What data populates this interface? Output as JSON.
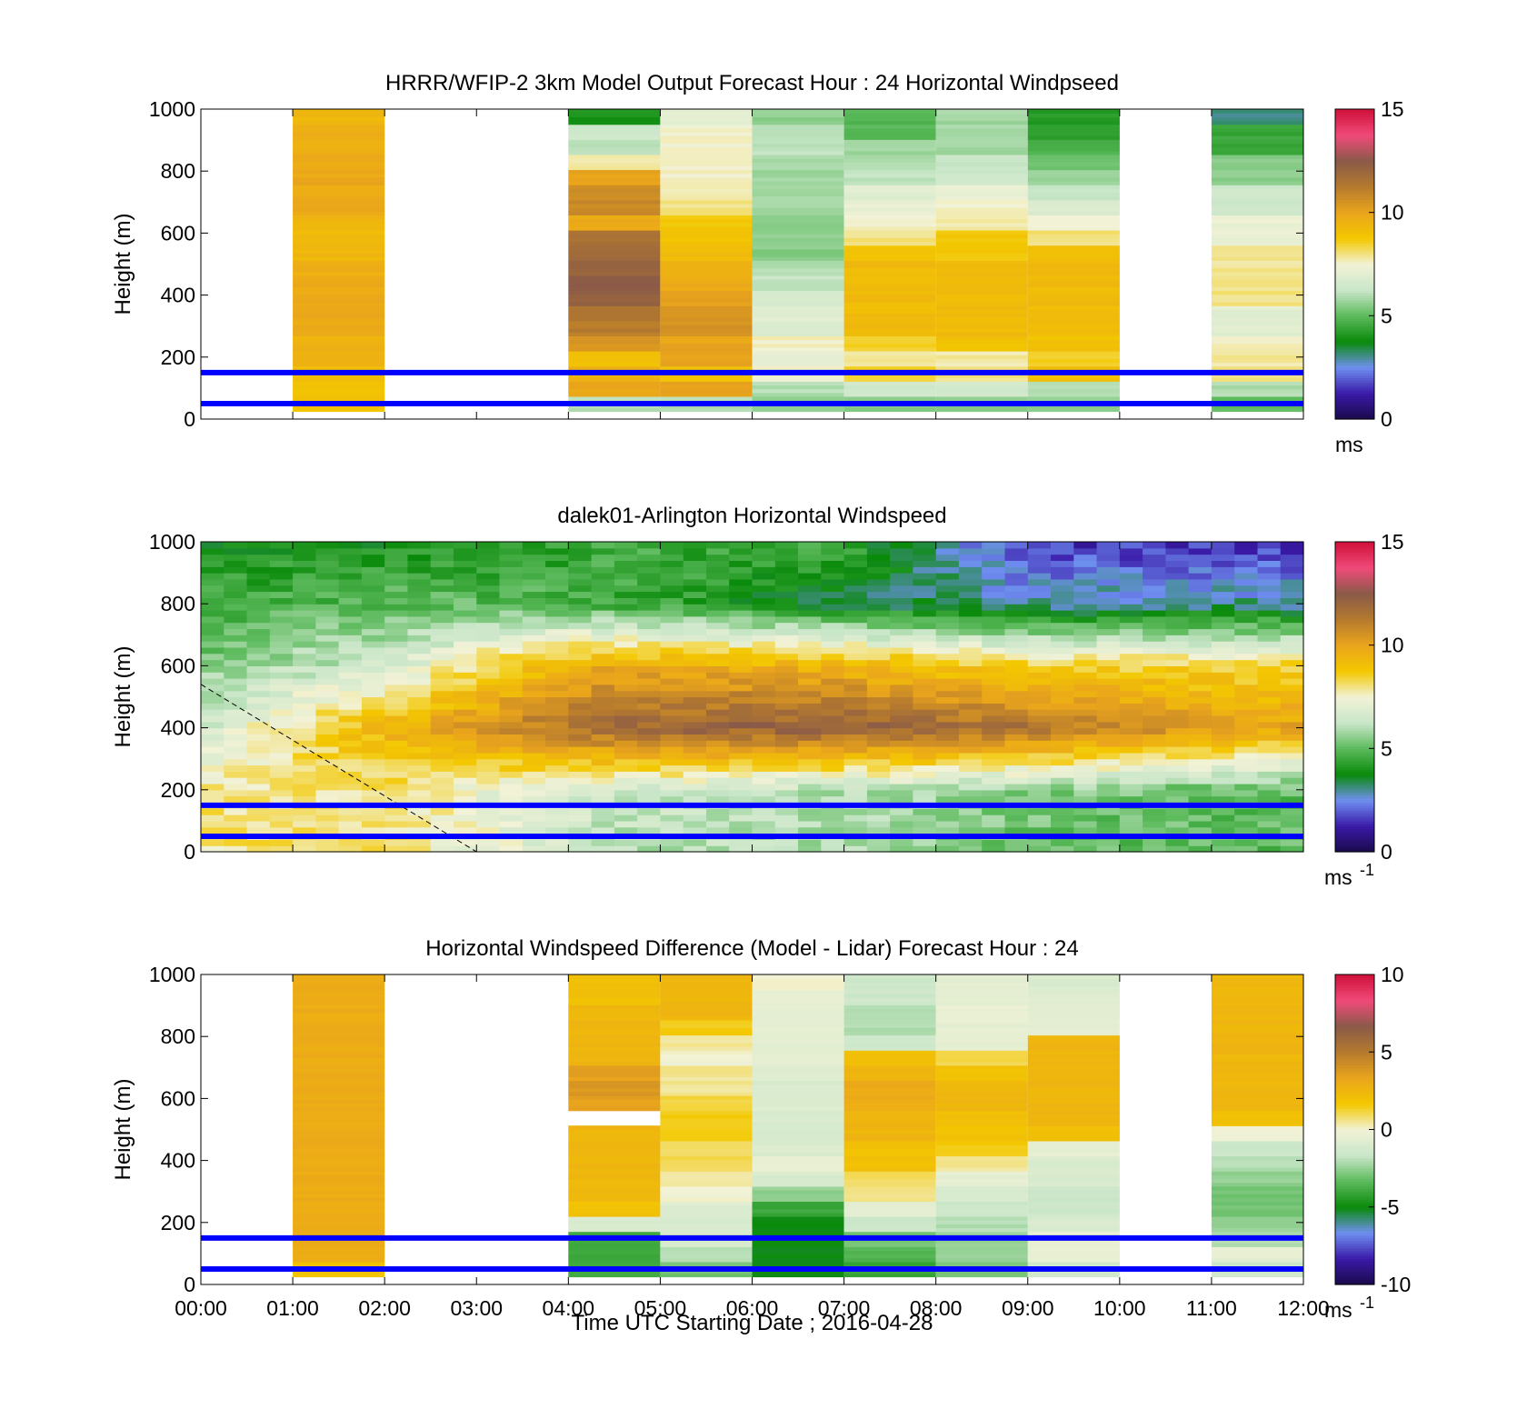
{
  "figure": {
    "xlabel": "Time UTC  Starting Date ; 2016-04-28",
    "x_ticks": [
      "00:00",
      "01:00",
      "02:00",
      "03:00",
      "04:00",
      "05:00",
      "06:00",
      "07:00",
      "08:00",
      "09:00",
      "10:00",
      "11:00",
      "12:00"
    ],
    "colormap": [
      "#1a0a4a",
      "#3a1aa8",
      "#6f8ff0",
      "#0a8a0a",
      "#5cba5c",
      "#c9e6c9",
      "#f2f2d6",
      "#f3c800",
      "#eaa51c",
      "#b57a2e",
      "#8a5a48",
      "#f04a7a",
      "#d0103a"
    ],
    "reference_line_color": "#0000ff"
  },
  "chart_data": [
    {
      "type": "heatmap",
      "title": "HRRR/WFIP-2 3km Model Output   Forecast Hour : 24 Horizontal Windpseed",
      "ylabel": "Height (m)",
      "y_ticks": [
        "0",
        "200",
        "400",
        "600",
        "800",
        "1000"
      ],
      "xlim": [
        0,
        12
      ],
      "ylim": [
        0,
        1000
      ],
      "colorbar": {
        "ticks": [
          "0",
          "5",
          "10",
          "15"
        ],
        "range": [
          0,
          15
        ],
        "unit": "ms",
        "unit_sup": ""
      },
      "reference_lines_m": [
        50,
        150
      ],
      "columns": [
        {
          "t": 1,
          "v": [
            9,
            9,
            9,
            9.5,
            9.5,
            9.8,
            9.8,
            9.8,
            9.8,
            9.6,
            9.4,
            9.2,
            9.4,
            9.8,
            9.8,
            9.9,
            9.8,
            9.7,
            9.6,
            9.3
          ]
        },
        {
          "t": 4,
          "v": [
            6,
            10,
            9.5,
            9,
            10.5,
            11.2,
            11.6,
            12.2,
            12.4,
            12.2,
            11.8,
            11.6,
            9.8,
            10.8,
            10.6,
            10,
            7.8,
            6.2,
            6.4,
            4
          ]
        },
        {
          "t": 5,
          "v": [
            6,
            10,
            9,
            10,
            10,
            10.5,
            10.5,
            10.2,
            9.8,
            9.5,
            9.2,
            9,
            8.8,
            8,
            7.8,
            7.6,
            7.5,
            7.5,
            7.5,
            7
          ]
        },
        {
          "t": 6,
          "v": [
            5.5,
            6,
            7.5,
            7.2,
            7.6,
            6.8,
            7,
            6.5,
            6.2,
            6,
            5.5,
            5.5,
            5.5,
            5.8,
            5.8,
            5.8,
            5.9,
            6.2,
            6.2,
            5.6
          ]
        },
        {
          "t": 7,
          "v": [
            5.5,
            6.5,
            8.5,
            7.8,
            8.5,
            9.2,
            9.2,
            9.2,
            9.2,
            9.2,
            8.8,
            8,
            7.6,
            7.2,
            7,
            6.2,
            6,
            5.8,
            4.9,
            4.9
          ]
        },
        {
          "t": 8,
          "v": [
            5.5,
            6.5,
            8,
            7.8,
            9,
            9.2,
            9.2,
            9.2,
            9.2,
            9.2,
            8.8,
            8.8,
            7.8,
            7.6,
            7.2,
            6.4,
            6.2,
            5.8,
            5.8,
            5.8
          ]
        },
        {
          "t": 9,
          "v": [
            5.5,
            6,
            9,
            8.5,
            9,
            9.2,
            9.2,
            9.2,
            9.2,
            9.2,
            9,
            8,
            7.6,
            6.8,
            6.2,
            5.6,
            5.2,
            4.8,
            4.2,
            4.2
          ]
        },
        {
          "t": 11,
          "v": [
            5,
            6,
            8,
            7.8,
            7.6,
            7,
            7,
            8,
            8,
            7.9,
            7.9,
            7.3,
            7.3,
            6.4,
            6.4,
            5.5,
            5.5,
            4.5,
            4.5,
            3.1
          ]
        }
      ]
    },
    {
      "type": "heatmap",
      "title": "dalek01-Arlington  Horizontal Windspeed",
      "ylabel": "Height (m)",
      "y_ticks": [
        "0",
        "200",
        "400",
        "600",
        "800",
        "1000"
      ],
      "xlim": [
        0,
        12
      ],
      "ylim": [
        0,
        1000
      ],
      "colorbar": {
        "ticks": [
          "0",
          "5",
          "10",
          "15"
        ],
        "range": [
          0,
          15
        ],
        "unit": "ms",
        "unit_sup": "-1"
      },
      "reference_lines_m": [
        50,
        150
      ],
      "time_hours": [
        0,
        0.5,
        1,
        1.5,
        2,
        2.5,
        3,
        3.5,
        4,
        4.5,
        5,
        5.5,
        6,
        6.5,
        7,
        7.5,
        8,
        8.5,
        9,
        9.5,
        10,
        10.5,
        11,
        11.5,
        12
      ],
      "profiles_m": [
        [
          0,
          8,
          8,
          7,
          6,
          6,
          5,
          5
        ],
        [
          200,
          8,
          8,
          7,
          6.5,
          6,
          5.5,
          5
        ],
        [
          400,
          6.5,
          9.5,
          11,
          12,
          12.2,
          11.5,
          10
        ],
        [
          600,
          5.5,
          6.5,
          9,
          9.8,
          9.5,
          8.5,
          8.5
        ],
        [
          800,
          4.5,
          5,
          5,
          4.6,
          3.5,
          3,
          3
        ],
        [
          1000,
          4,
          4,
          4,
          4.6,
          4.5,
          1.5,
          1.5
        ]
      ],
      "diagonal_line": {
        "from": [
          0,
          540
        ],
        "to": [
          3,
          0
        ],
        "style": "dashed"
      }
    },
    {
      "type": "heatmap",
      "title": "Horizontal Windspeed Difference (Model - Lidar) Forecast Hour : 24",
      "ylabel": "Height (m)",
      "y_ticks": [
        "0",
        "200",
        "400",
        "600",
        "800",
        "1000"
      ],
      "xlim": [
        0,
        12
      ],
      "ylim": [
        0,
        1000
      ],
      "colorbar": {
        "ticks": [
          "-10",
          "-5",
          "0",
          "5",
          "10"
        ],
        "range": [
          -10,
          10
        ],
        "unit": "ms",
        "unit_sup": "-1"
      },
      "reference_lines_m": [
        50,
        150
      ],
      "columns": [
        {
          "t": 1,
          "v": [
            2,
            3,
            3,
            3,
            3,
            3,
            3,
            3,
            3,
            3,
            3,
            3,
            3,
            3,
            3,
            3,
            3,
            3,
            3,
            3
          ]
        },
        {
          "t": 4,
          "v": [
            -4,
            -4,
            -4,
            -1,
            2,
            2.5,
            2.5,
            2.5,
            2.5,
            2.5,
            null,
            3.5,
            3.8,
            3.5,
            2.5,
            2.5,
            2.5,
            2.5,
            2,
            2
          ]
        },
        {
          "t": 5,
          "v": [
            -3,
            -2,
            -1,
            -1,
            -0.8,
            0,
            0.5,
            1,
            1,
            1.5,
            1.5,
            1.2,
            0.5,
            0.5,
            0,
            0.5,
            1.5,
            2.5,
            2.5,
            2.5
          ]
        },
        {
          "t": 6,
          "v": [
            -5,
            -5,
            -5,
            -5,
            -4,
            -2.5,
            -1,
            -0.5,
            -1,
            -1,
            -1,
            -1,
            -1,
            -0.8,
            -0.5,
            -0.5,
            -0.4,
            -0.5,
            -0.3,
            0
          ]
        },
        {
          "t": 7,
          "v": [
            -4,
            -3.5,
            -3,
            -1.5,
            -0.5,
            0.5,
            1,
            2,
            2,
            2.5,
            2.5,
            3,
            3,
            2.5,
            2,
            -1.5,
            -2,
            -2,
            -1.5,
            -1.5
          ]
        },
        {
          "t": 8,
          "v": [
            -3,
            -2.5,
            -2.5,
            -2,
            -1.5,
            -1,
            -0.5,
            0.5,
            1.5,
            2,
            2,
            2.5,
            2.5,
            2,
            1,
            -0.5,
            -0.5,
            -0.4,
            -0.6,
            -0.6
          ]
        },
        {
          "t": 9,
          "v": [
            -1.5,
            -0.4,
            -0.4,
            -1,
            -1.5,
            -1.5,
            -1,
            -1,
            -0.5,
            2,
            2.5,
            2.5,
            2.5,
            2.5,
            2.5,
            2.5,
            -0.5,
            -0.5,
            -0.8,
            -1
          ]
        },
        {
          "t": 11,
          "v": [
            -1.5,
            -0.5,
            -2,
            -2.5,
            -3,
            -3,
            -2.5,
            -2,
            -1.5,
            0,
            2,
            2.5,
            2.5,
            2.5,
            2.5,
            2.5,
            2.5,
            2.5,
            2.5,
            2.5
          ]
        }
      ]
    }
  ]
}
